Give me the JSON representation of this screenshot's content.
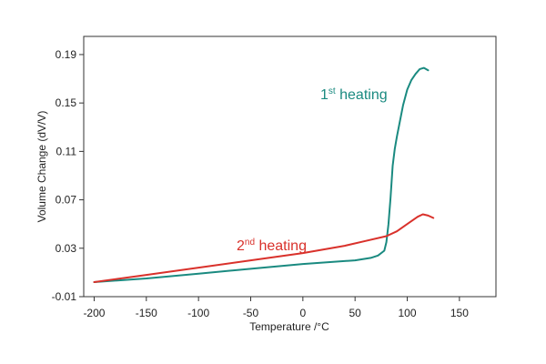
{
  "chart_data": {
    "type": "line",
    "title": "",
    "xlabel": "Temperature /°C",
    "ylabel": "Volume Change (dV/V)",
    "xlim": [
      -210,
      185
    ],
    "ylim": [
      -0.01,
      0.205
    ],
    "x_ticks": [
      -200,
      -150,
      -100,
      -50,
      0,
      50,
      100,
      150
    ],
    "x_tick_labels": [
      "-200",
      "-150",
      "-100",
      "-50",
      "0",
      "50",
      "100",
      "150"
    ],
    "y_ticks": [
      -0.01,
      0.03,
      0.07,
      0.11,
      0.15,
      0.19
    ],
    "y_tick_labels": [
      "-0.01",
      "0.03",
      "0.07",
      "0.11",
      "0.15",
      "0.19"
    ],
    "grid": false,
    "legend": "none",
    "series": [
      {
        "annotation": {
          "base": "1",
          "sup": "st",
          "rest": " heating"
        },
        "color": "#1a8a80",
        "x": [
          -200,
          -150,
          -100,
          -50,
          0,
          50,
          65,
          72,
          78,
          80,
          82,
          84,
          86,
          88,
          90,
          93,
          96,
          100,
          104,
          108,
          112,
          116,
          120
        ],
        "y": [
          0.002,
          0.005,
          0.009,
          0.013,
          0.017,
          0.02,
          0.022,
          0.024,
          0.028,
          0.035,
          0.05,
          0.072,
          0.098,
          0.112,
          0.122,
          0.135,
          0.148,
          0.161,
          0.169,
          0.174,
          0.178,
          0.179,
          0.177
        ]
      },
      {
        "annotation": {
          "base": "2",
          "sup": "nd",
          "rest": " heating"
        },
        "color": "#d9312b",
        "x": [
          -200,
          -150,
          -100,
          -50,
          0,
          40,
          60,
          80,
          90,
          100,
          110,
          115,
          120,
          125
        ],
        "y": [
          0.002,
          0.008,
          0.014,
          0.02,
          0.026,
          0.032,
          0.036,
          0.04,
          0.044,
          0.05,
          0.056,
          0.058,
          0.057,
          0.055
        ]
      }
    ]
  }
}
